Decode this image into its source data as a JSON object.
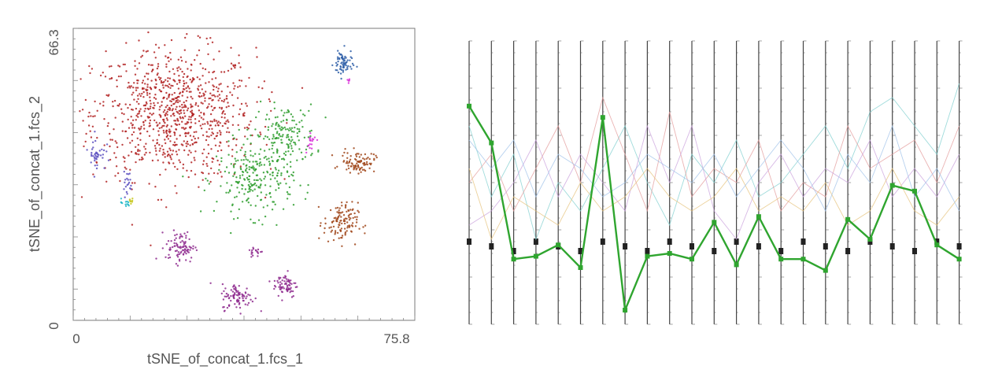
{
  "chart_data": [
    {
      "type": "scatter",
      "xlabel": "tSNE_of_concat_1.fcs_1",
      "ylabel": "tSNE_of_concat_1.fcs_2",
      "xlim": [
        0,
        75.8
      ],
      "ylim": [
        0,
        66.3
      ],
      "x_tick_labels": [
        "0",
        "75.8"
      ],
      "y_tick_labels": [
        "0",
        "66.3"
      ],
      "grid": false,
      "series": [
        {
          "color": "#b22222",
          "clusters": [
            {
              "x": 23,
              "y": 47,
              "sx": 9.5,
              "sy": 7.5,
              "n": 900
            }
          ]
        },
        {
          "color": "#2e9e2e",
          "clusters": [
            {
              "x": 49,
              "y": 42,
              "sx": 3.6,
              "sy": 3.5,
              "n": 160
            },
            {
              "x": 42,
              "y": 32,
              "sx": 4.5,
              "sy": 4.2,
              "n": 240
            }
          ]
        },
        {
          "color": "#2f5fa8",
          "clusters": [
            {
              "x": 62.5,
              "y": 58.5,
              "sx": 1.1,
              "sy": 1.6,
              "n": 70
            }
          ]
        },
        {
          "color": "#a0461a",
          "clusters": [
            {
              "x": 66,
              "y": 36,
              "sx": 2.0,
              "sy": 1.2,
              "n": 90
            },
            {
              "x": 62,
              "y": 22,
              "sx": 2.0,
              "sy": 2.3,
              "n": 120
            }
          ]
        },
        {
          "color": "#8e2a8e",
          "clusters": [
            {
              "x": 24.5,
              "y": 16.5,
              "sx": 1.7,
              "sy": 1.8,
              "n": 90
            },
            {
              "x": 49,
              "y": 7.8,
              "sx": 1.4,
              "sy": 1.5,
              "n": 70
            },
            {
              "x": 38,
              "y": 5,
              "sx": 1.9,
              "sy": 1.5,
              "n": 90
            },
            {
              "x": 42,
              "y": 15.5,
              "sx": 0.9,
              "sy": 0.6,
              "n": 18
            }
          ]
        },
        {
          "color": "#5a4fbf",
          "clusters": [
            {
              "x": 5,
              "y": 38,
              "sx": 1.0,
              "sy": 2.0,
              "n": 40
            },
            {
              "x": 12,
              "y": 31,
              "sx": 0.6,
              "sy": 1.5,
              "n": 20
            }
          ]
        },
        {
          "color": "#22b8c8",
          "clusters": [
            {
              "x": 11.5,
              "y": 26.5,
              "sx": 0.6,
              "sy": 0.5,
              "n": 12
            }
          ]
        },
        {
          "color": "#c8c820",
          "clusters": [
            {
              "x": 13,
              "y": 27,
              "sx": 0.5,
              "sy": 0.4,
              "n": 8
            }
          ]
        },
        {
          "color": "#d82fd8",
          "clusters": [
            {
              "x": 55,
              "y": 41,
              "sx": 0.7,
              "sy": 1.2,
              "n": 18
            },
            {
              "x": 63.5,
              "y": 54.5,
              "sx": 0.4,
              "sy": 0.3,
              "n": 5
            }
          ]
        }
      ]
    },
    {
      "type": "line",
      "layout": "parallel-coordinates",
      "n_axes": 23,
      "axis_labels": [
        "",
        "",
        "",
        "",
        "",
        "",
        "",
        "",
        "",
        "",
        "",
        "",
        "",
        "",
        "",
        "",
        "",
        "",
        "",
        "",
        "",
        "",
        ""
      ],
      "highlight_series": {
        "color": "#2fa52f",
        "values": [
          0.23,
          0.36,
          0.77,
          0.76,
          0.72,
          0.8,
          0.27,
          0.95,
          0.76,
          0.75,
          0.77,
          0.64,
          0.79,
          0.62,
          0.77,
          0.77,
          0.81,
          0.63,
          0.7,
          0.51,
          0.53,
          0.72,
          0.77
        ]
      },
      "background_series": [
        {
          "color": "#7fcfcf",
          "values": [
            0.3,
            0.55,
            0.4,
            0.7,
            0.5,
            0.6,
            0.45,
            0.3,
            0.5,
            0.65,
            0.4,
            0.5,
            0.35,
            0.55,
            0.5,
            0.4,
            0.3,
            0.45,
            0.25,
            0.2,
            0.3,
            0.4,
            0.15
          ]
        },
        {
          "color": "#e39a9a",
          "values": [
            0.5,
            0.4,
            0.6,
            0.45,
            0.3,
            0.5,
            0.2,
            0.4,
            0.6,
            0.25,
            0.55,
            0.45,
            0.5,
            0.35,
            0.6,
            0.5,
            0.55,
            0.3,
            0.45,
            0.4,
            0.35,
            0.5,
            0.3
          ]
        },
        {
          "color": "#c9a0dc",
          "values": [
            0.65,
            0.6,
            0.5,
            0.35,
            0.55,
            0.4,
            0.5,
            0.6,
            0.3,
            0.5,
            0.3,
            0.6,
            0.7,
            0.5,
            0.4,
            0.55,
            0.45,
            0.5,
            0.35,
            0.55,
            0.45,
            0.55,
            0.4
          ]
        },
        {
          "color": "#e6c27a",
          "values": [
            0.45,
            0.7,
            0.55,
            0.6,
            0.65,
            0.5,
            0.6,
            0.55,
            0.45,
            0.55,
            0.6,
            0.55,
            0.45,
            0.6,
            0.55,
            0.6,
            0.5,
            0.65,
            0.6,
            0.45,
            0.6,
            0.65,
            0.55
          ]
        },
        {
          "color": "#9fc2ea",
          "values": [
            0.35,
            0.45,
            0.35,
            0.55,
            0.4,
            0.45,
            0.55,
            0.5,
            0.4,
            0.45,
            0.5,
            0.4,
            0.55,
            0.45,
            0.35,
            0.45,
            0.6,
            0.4,
            0.5,
            0.3,
            0.55,
            0.45,
            0.6
          ]
        }
      ]
    }
  ]
}
